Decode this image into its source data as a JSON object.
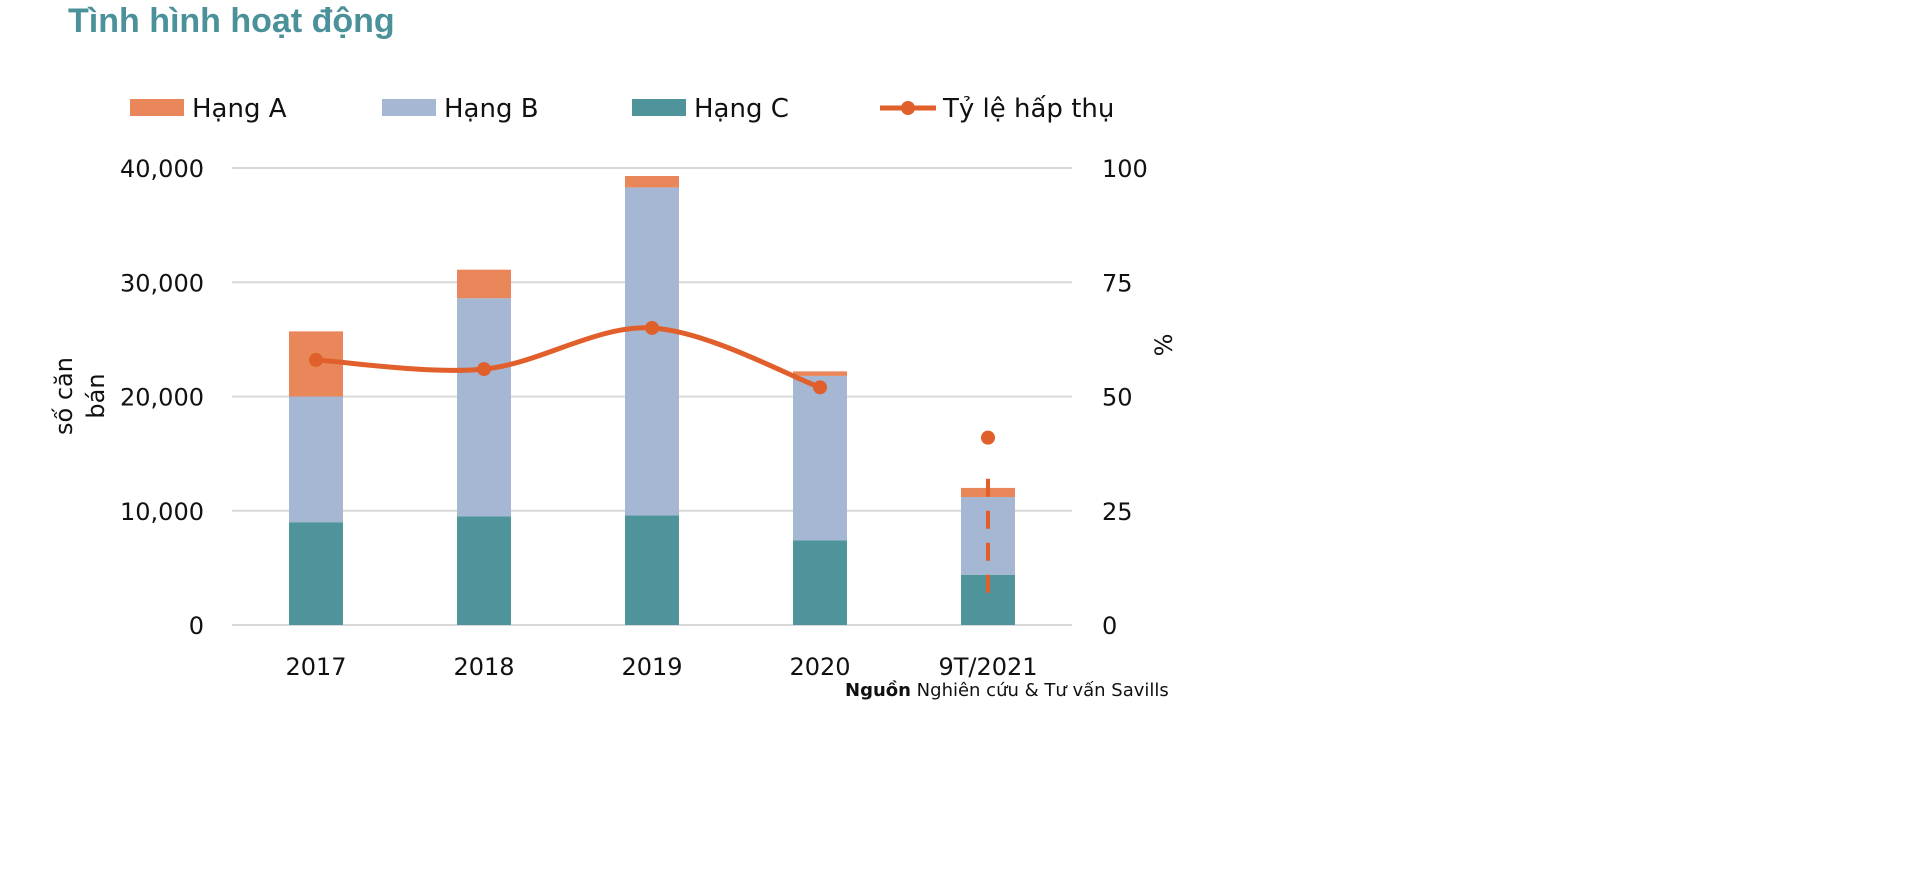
{
  "title": "Tình hình hoạt động",
  "source": {
    "label": "Nguồn",
    "text": " Nghiên cứu & Tư vấn Savills"
  },
  "chart_data": {
    "type": "bar",
    "stacked": true,
    "categories": [
      "2017",
      "2018",
      "2019",
      "2020",
      "9T/2021"
    ],
    "series": [
      {
        "name": "Hạng C",
        "color": "#4f949b",
        "values": [
          9000,
          9500,
          9600,
          7400,
          4400
        ]
      },
      {
        "name": "Hạng B",
        "color": "#a6b7d3",
        "values": [
          11000,
          19100,
          28700,
          14400,
          6800
        ]
      },
      {
        "name": "Hạng A",
        "color": "#e9875a",
        "values": [
          5700,
          2500,
          1000,
          400,
          800
        ]
      }
    ],
    "line_series": {
      "name": "Tỷ lệ hấp thụ",
      "color": "#e05f2a",
      "axis": "right",
      "values": [
        58,
        56,
        65,
        52,
        41
      ],
      "smooth": true,
      "last_point_disconnected": true
    },
    "ylabel": "số căn bán",
    "y2label": "%",
    "ylim": [
      0,
      40000
    ],
    "y2lim": [
      0,
      100
    ],
    "yticks": [
      "0",
      "10,000",
      "20,000",
      "30,000",
      "40,000"
    ],
    "y2ticks": [
      "0",
      "25",
      "50",
      "75",
      "100"
    ],
    "grid": true,
    "legend": "top"
  }
}
